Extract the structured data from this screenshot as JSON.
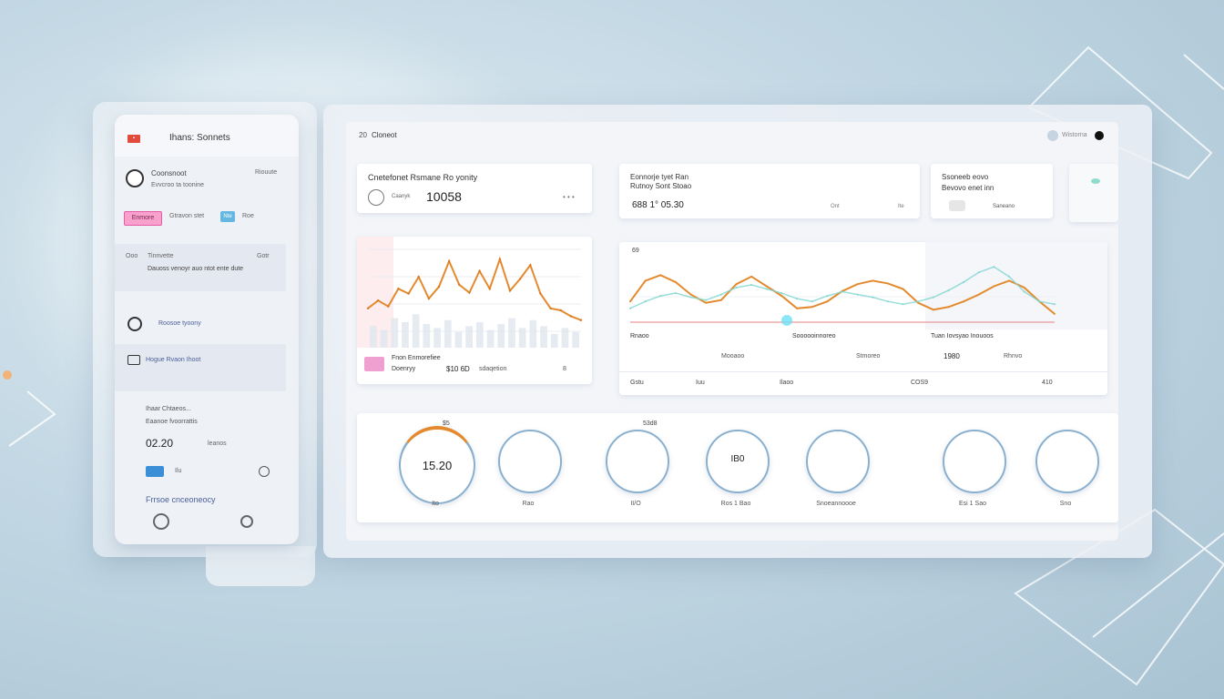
{
  "colors": {
    "accent_orange": "#e38a2e",
    "accent_blue": "#7ea8cc",
    "accent_pink": "#e85aa8",
    "accent_red": "#e24a3b",
    "bg": "#c3d8e4"
  },
  "phone": {
    "title": "Ihans: Sonnets",
    "item1": {
      "name": "Coonsnoot",
      "sub": "Evvcroo ta toonine",
      "right": "Riouute"
    },
    "tags": {
      "pink": "Enmore",
      "mid": "Gtravon stet",
      "blue": "Nte",
      "blue_right": "Roe"
    },
    "item2": {
      "left": "Ooo",
      "name": "Tinnvette",
      "right": "Gotr",
      "detail": "Dauoss venoyr auo ntot ente dute"
    },
    "item3": {
      "label": "Roosoe tyoony"
    },
    "item4": {
      "label": "Hogue Rvaon Ihoot"
    },
    "item5": {
      "title": "Ihaar Chtaeos...",
      "sub": "Eaanoe fvoorrattis",
      "value": "02.20",
      "value_note": "leanos"
    },
    "item6": {
      "label": "Ilu"
    },
    "footer": "Frrsoe cnceoneocy"
  },
  "dash": {
    "header": {
      "title": "Cloneot",
      "left_num": "20",
      "right_label": "Wistorna"
    },
    "stat1": {
      "title": "Cnetefonet Rsmane Ro yonity",
      "value": "10058",
      "note": "Caanyk"
    },
    "stat2": {
      "title": "Eonnorje tyet Ran",
      "sub": "Rutnoy Sont Stoao",
      "value": "688 1° 05.30",
      "note": "Ont",
      "right": "Ite"
    },
    "stat3": {
      "title": "Ssoneeb eovo",
      "sub": "Bevovo enet inn",
      "footer": "Saneano"
    },
    "chart1": {
      "legend1": "Fnon Enmorefiee",
      "legend2": "Doenryy",
      "value": "$10 6D",
      "note": "sdaqetion",
      "corner": "8"
    },
    "chart2": {
      "corner_label": "69",
      "label_a": "Rnaoo",
      "label_b": "Mooaoo",
      "label_c": "Soooooinnoreo",
      "label_d": "Stmoreo",
      "label_e": "Tuan Iovsyao Inouoos",
      "label_f": "Rhnvo",
      "value_e": "1980",
      "row": {
        "a": "Gstu",
        "b": "Iuu",
        "c": "Ilaoo",
        "d": "COS9",
        "e": "410"
      }
    },
    "gauges": [
      {
        "value": "15.20",
        "top": "$5",
        "label": "Ito"
      },
      {
        "value": "",
        "top": "",
        "label": "Rao"
      },
      {
        "value": "",
        "top": "53d8",
        "label": "II/O"
      },
      {
        "value": "IB0",
        "top": "",
        "label": "Ros 1 Bao"
      },
      {
        "value": "",
        "top": "",
        "label": "Snoeannoooe"
      },
      {
        "value": "",
        "top": "",
        "label": "Esi 1 Sao"
      },
      {
        "value": "",
        "top": "",
        "label": "Sno"
      }
    ]
  },
  "chart_data": [
    {
      "type": "line",
      "title": "",
      "series": [
        {
          "name": "",
          "values": [
            40,
            48,
            42,
            60,
            55,
            72,
            50,
            62,
            88,
            64,
            56,
            78,
            60,
            90,
            58,
            70,
            84,
            55,
            40,
            38,
            32,
            28
          ]
        }
      ],
      "bars": [
        22,
        18,
        30,
        26,
        34,
        24,
        20,
        28,
        16,
        22,
        26,
        18,
        24,
        30,
        20,
        28,
        22,
        14,
        20,
        16
      ]
    },
    {
      "type": "line",
      "title": "",
      "series": [
        {
          "name": "",
          "values": [
            30,
            60,
            68,
            58,
            40,
            28,
            32,
            55,
            66,
            52,
            38,
            20,
            22,
            30,
            45,
            55,
            60,
            56,
            48,
            28,
            18,
            22,
            30,
            40,
            52,
            60,
            50,
            30,
            12
          ]
        },
        {
          "name": "",
          "values": [
            20,
            30,
            38,
            42,
            36,
            32,
            40,
            50,
            54,
            48,
            42,
            34,
            30,
            38,
            44,
            40,
            36,
            30,
            26,
            30,
            36,
            46,
            58,
            72,
            80,
            66,
            44,
            30,
            26
          ]
        }
      ]
    }
  ]
}
